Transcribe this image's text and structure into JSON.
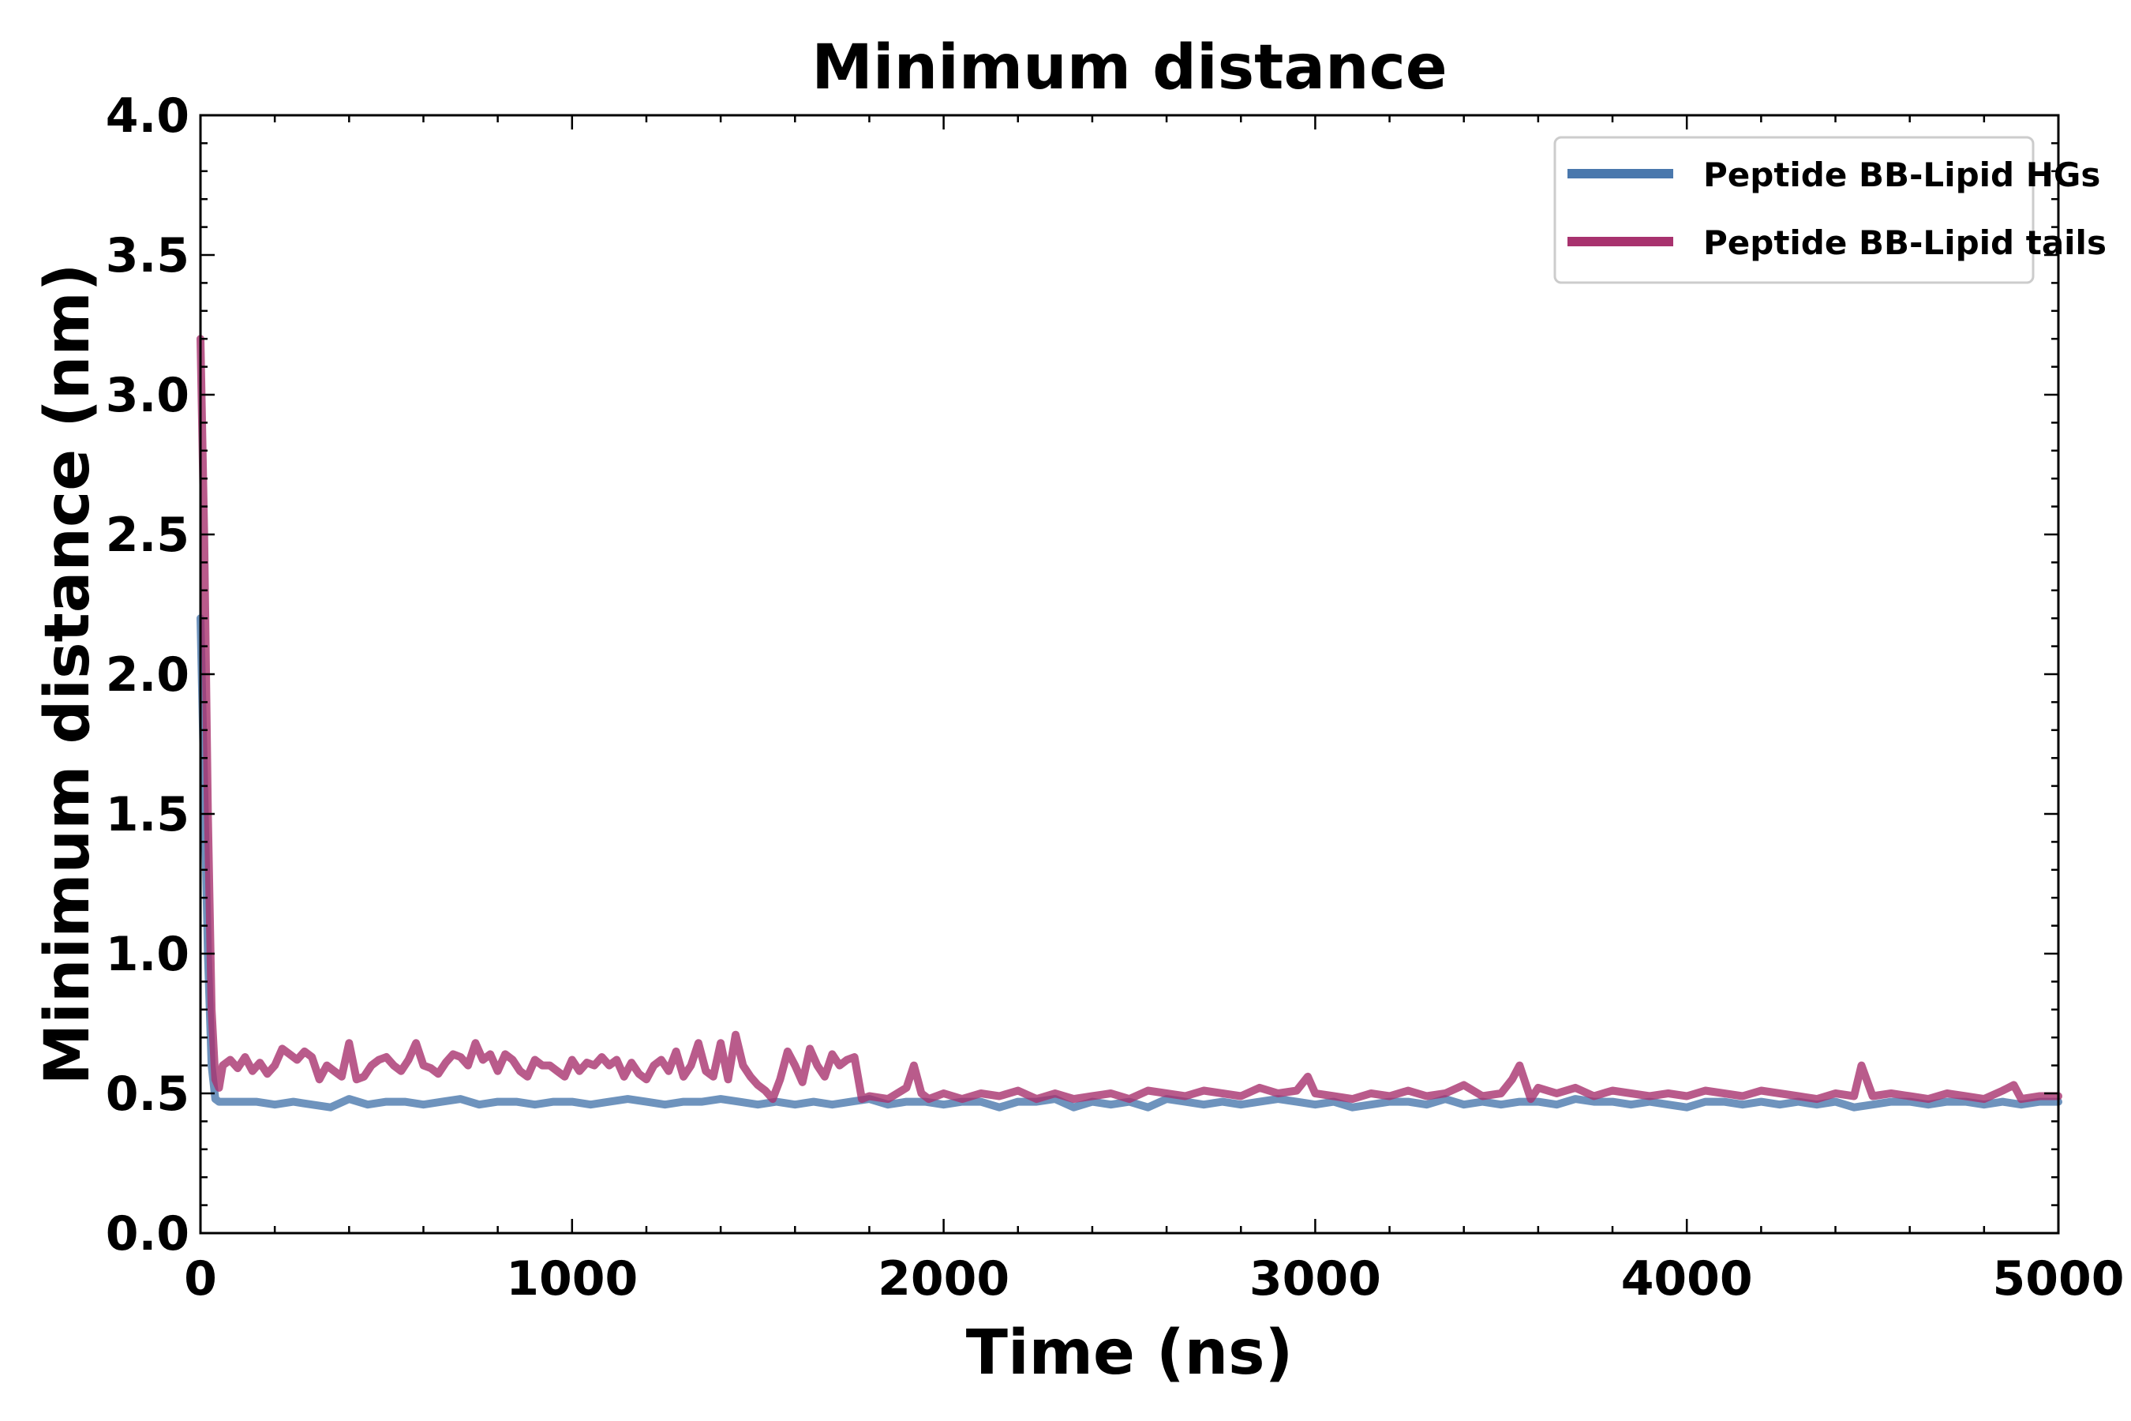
{
  "chart_data": {
    "type": "line",
    "title": "Minimum distance",
    "xlabel": "Time (ns)",
    "ylabel": "Minimum distance (nm)",
    "xlim": [
      0,
      5000
    ],
    "ylim": [
      0.0,
      4.0
    ],
    "xticks": [
      "0",
      "1000",
      "2000",
      "3000",
      "4000",
      "5000"
    ],
    "yticks": [
      "0.0",
      "0.5",
      "1.0",
      "1.5",
      "2.0",
      "2.5",
      "3.0",
      "3.5",
      "4.0"
    ],
    "legend_position": "top-right",
    "series": [
      {
        "name": "Peptide BB-Lipid HGs",
        "color": "#4a78ad",
        "x": [
          0,
          10,
          20,
          30,
          40,
          50,
          100,
          150,
          200,
          250,
          300,
          350,
          400,
          450,
          500,
          550,
          600,
          650,
          700,
          750,
          800,
          850,
          900,
          950,
          1000,
          1050,
          1100,
          1150,
          1200,
          1250,
          1300,
          1350,
          1400,
          1450,
          1500,
          1550,
          1600,
          1650,
          1700,
          1750,
          1800,
          1850,
          1900,
          1950,
          2000,
          2050,
          2100,
          2150,
          2200,
          2250,
          2300,
          2350,
          2400,
          2450,
          2500,
          2550,
          2600,
          2650,
          2700,
          2750,
          2800,
          2850,
          2900,
          2950,
          3000,
          3050,
          3100,
          3150,
          3200,
          3250,
          3300,
          3350,
          3400,
          3450,
          3500,
          3550,
          3600,
          3650,
          3700,
          3750,
          3800,
          3850,
          3900,
          3950,
          4000,
          4050,
          4100,
          4150,
          4200,
          4250,
          4300,
          4350,
          4400,
          4450,
          4500,
          4550,
          4600,
          4650,
          4700,
          4750,
          4800,
          4850,
          4900,
          4950,
          5000
        ],
        "values": [
          2.2,
          1.6,
          1.0,
          0.6,
          0.48,
          0.47,
          0.47,
          0.47,
          0.46,
          0.47,
          0.46,
          0.45,
          0.48,
          0.46,
          0.47,
          0.47,
          0.46,
          0.47,
          0.48,
          0.46,
          0.47,
          0.47,
          0.46,
          0.47,
          0.47,
          0.46,
          0.47,
          0.48,
          0.47,
          0.46,
          0.47,
          0.47,
          0.48,
          0.47,
          0.46,
          0.47,
          0.46,
          0.47,
          0.46,
          0.47,
          0.48,
          0.46,
          0.47,
          0.47,
          0.46,
          0.47,
          0.47,
          0.45,
          0.47,
          0.47,
          0.48,
          0.45,
          0.47,
          0.46,
          0.47,
          0.45,
          0.48,
          0.47,
          0.46,
          0.47,
          0.46,
          0.47,
          0.48,
          0.47,
          0.46,
          0.47,
          0.45,
          0.46,
          0.47,
          0.47,
          0.46,
          0.48,
          0.46,
          0.47,
          0.46,
          0.47,
          0.47,
          0.46,
          0.48,
          0.47,
          0.47,
          0.46,
          0.47,
          0.46,
          0.45,
          0.47,
          0.47,
          0.46,
          0.47,
          0.46,
          0.47,
          0.46,
          0.47,
          0.45,
          0.46,
          0.47,
          0.47,
          0.46,
          0.47,
          0.47,
          0.46,
          0.47,
          0.46,
          0.47,
          0.47
        ]
      },
      {
        "name": "Peptide BB-Lipid tails",
        "color": "#a8326e",
        "x": [
          0,
          10,
          20,
          30,
          40,
          50,
          60,
          80,
          100,
          120,
          140,
          160,
          180,
          200,
          220,
          240,
          260,
          280,
          300,
          320,
          340,
          360,
          380,
          400,
          420,
          440,
          460,
          480,
          500,
          520,
          540,
          560,
          580,
          600,
          620,
          640,
          660,
          680,
          700,
          720,
          740,
          760,
          780,
          800,
          820,
          840,
          860,
          880,
          900,
          920,
          940,
          960,
          980,
          1000,
          1020,
          1040,
          1060,
          1080,
          1100,
          1120,
          1140,
          1160,
          1180,
          1200,
          1220,
          1240,
          1260,
          1280,
          1300,
          1320,
          1340,
          1360,
          1380,
          1400,
          1420,
          1440,
          1460,
          1480,
          1500,
          1520,
          1540,
          1560,
          1580,
          1600,
          1620,
          1640,
          1660,
          1680,
          1700,
          1720,
          1740,
          1760,
          1780,
          1800,
          1850,
          1900,
          1920,
          1940,
          1960,
          2000,
          2050,
          2100,
          2150,
          2200,
          2250,
          2300,
          2350,
          2400,
          2450,
          2500,
          2550,
          2600,
          2650,
          2700,
          2750,
          2800,
          2850,
          2900,
          2950,
          2980,
          3000,
          3050,
          3100,
          3150,
          3200,
          3250,
          3300,
          3350,
          3400,
          3450,
          3500,
          3530,
          3550,
          3580,
          3600,
          3650,
          3700,
          3750,
          3800,
          3850,
          3900,
          3950,
          4000,
          4050,
          4100,
          4150,
          4200,
          4250,
          4300,
          4350,
          4400,
          4450,
          4470,
          4500,
          4550,
          4600,
          4650,
          4700,
          4750,
          4800,
          4850,
          4880,
          4900,
          4950,
          5000
        ],
        "values": [
          3.2,
          2.5,
          1.5,
          0.8,
          0.55,
          0.52,
          0.6,
          0.62,
          0.59,
          0.63,
          0.58,
          0.61,
          0.57,
          0.6,
          0.66,
          0.64,
          0.62,
          0.65,
          0.63,
          0.55,
          0.6,
          0.58,
          0.56,
          0.68,
          0.55,
          0.56,
          0.6,
          0.62,
          0.63,
          0.6,
          0.58,
          0.62,
          0.68,
          0.6,
          0.59,
          0.57,
          0.61,
          0.64,
          0.63,
          0.6,
          0.68,
          0.62,
          0.64,
          0.58,
          0.64,
          0.62,
          0.58,
          0.56,
          0.62,
          0.6,
          0.6,
          0.58,
          0.56,
          0.62,
          0.58,
          0.61,
          0.6,
          0.63,
          0.6,
          0.62,
          0.56,
          0.61,
          0.57,
          0.55,
          0.6,
          0.62,
          0.58,
          0.65,
          0.56,
          0.6,
          0.68,
          0.58,
          0.56,
          0.68,
          0.55,
          0.71,
          0.6,
          0.56,
          0.53,
          0.51,
          0.48,
          0.55,
          0.65,
          0.6,
          0.54,
          0.66,
          0.6,
          0.56,
          0.64,
          0.6,
          0.62,
          0.63,
          0.48,
          0.49,
          0.48,
          0.52,
          0.6,
          0.5,
          0.48,
          0.5,
          0.48,
          0.5,
          0.49,
          0.51,
          0.48,
          0.5,
          0.48,
          0.49,
          0.5,
          0.48,
          0.51,
          0.5,
          0.49,
          0.51,
          0.5,
          0.49,
          0.52,
          0.5,
          0.51,
          0.56,
          0.5,
          0.49,
          0.48,
          0.5,
          0.49,
          0.51,
          0.49,
          0.5,
          0.53,
          0.49,
          0.5,
          0.55,
          0.6,
          0.48,
          0.52,
          0.5,
          0.52,
          0.49,
          0.51,
          0.5,
          0.49,
          0.5,
          0.49,
          0.51,
          0.5,
          0.49,
          0.51,
          0.5,
          0.49,
          0.48,
          0.5,
          0.49,
          0.6,
          0.49,
          0.5,
          0.49,
          0.48,
          0.5,
          0.49,
          0.48,
          0.51,
          0.53,
          0.48,
          0.49,
          0.49
        ]
      }
    ]
  }
}
